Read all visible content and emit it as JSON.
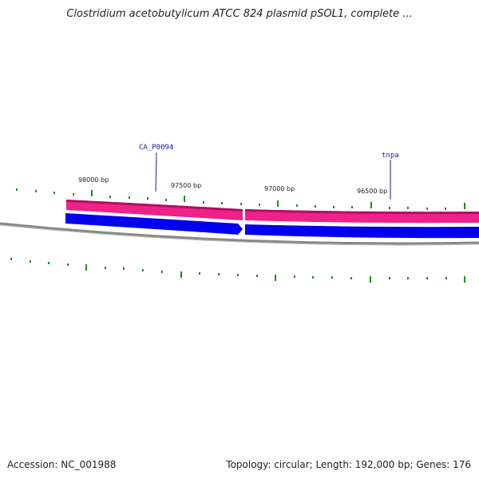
{
  "title": "Clostridium acetobutylicum ATCC 824 plasmid pSOL1, complete ...",
  "footer": {
    "accession": "Accession: NC_001988",
    "summary": "Topology: circular; Length: 192,000 bp; Genes: 176"
  },
  "colors": {
    "forward_strand": "#ee2288",
    "reverse_strand": "#0000ee",
    "backbone": "#888888",
    "ticks": "#228822",
    "gene_label": "#1a1aaa"
  },
  "position_labels": [
    "98000 bp",
    "97500 bp",
    "97000 bp",
    "96500 bp"
  ],
  "genes": [
    {
      "name": "CA_P0094",
      "strand": "reverse"
    },
    {
      "name": "tnpa",
      "strand": "forward"
    }
  ]
}
